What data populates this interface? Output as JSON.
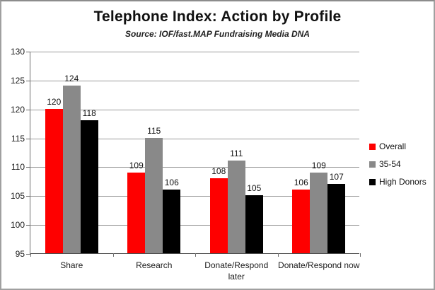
{
  "chart": {
    "title": "Telephone Index: Action by Profile",
    "subtitle": "Source: IOF/fast.MAP Fundraising Media DNA"
  },
  "chart_data": {
    "type": "bar",
    "title": "Telephone Index: Action by Profile",
    "subtitle": "Source: IOF/fast.MAP Fundraising Media DNA",
    "categories": [
      "Share",
      "Research",
      "Donate/Respond later",
      "Donate/Respond now"
    ],
    "series": [
      {
        "name": "Overall",
        "color": "#fe0000",
        "values": [
          120,
          109,
          108,
          106
        ]
      },
      {
        "name": "35-54",
        "color": "#898989",
        "values": [
          124,
          115,
          111,
          109
        ]
      },
      {
        "name": "High Donors",
        "color": "#000000",
        "values": [
          118,
          106,
          105,
          107
        ]
      }
    ],
    "ylim": [
      95,
      130
    ],
    "yticks": [
      95,
      100,
      105,
      110,
      115,
      120,
      125,
      130
    ],
    "grid": true,
    "data_labels": true,
    "legend_position": "right",
    "xlabel": "",
    "ylabel": ""
  },
  "colors": {
    "background": "#ffffff",
    "frame_border": "#a0a0a0",
    "gridline": "#9a9a9a",
    "axis_line": "#6e6e6e",
    "text": "#111111"
  }
}
